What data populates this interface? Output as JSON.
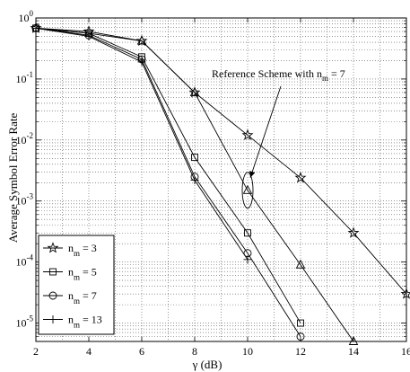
{
  "chart_data": {
    "type": "line",
    "xlabel": "γ (dB)",
    "ylabel": "Average Symbol Error Rate",
    "x_ticks": [
      "2",
      "4",
      "6",
      "8",
      "10",
      "12",
      "14",
      "16"
    ],
    "y_ticks": [
      {
        "base": "10",
        "exp": "0"
      },
      {
        "base": "10",
        "exp": "-1"
      },
      {
        "base": "10",
        "exp": "-2"
      },
      {
        "base": "10",
        "exp": "-3"
      },
      {
        "base": "10",
        "exp": "-4"
      },
      {
        "base": "10",
        "exp": "-5"
      }
    ],
    "xlim": [
      2,
      16
    ],
    "ylim": [
      5e-06,
      1
    ],
    "y_scale": "log",
    "grid": true,
    "legend_position": "bottom-left",
    "annotation": {
      "text": "Reference Scheme with n",
      "subscript": "m",
      "suffix": " = 7",
      "target_x": 10,
      "target_y": 0.0015
    },
    "series": [
      {
        "name": "n_m = 3",
        "legend": {
          "main": "n",
          "sub": "m",
          "suffix": " = 3"
        },
        "marker": "star",
        "x": [
          2,
          4,
          6,
          8,
          10,
          12,
          14,
          16
        ],
        "y": [
          0.68,
          0.6,
          0.42,
          0.06,
          0.012,
          0.0024,
          0.0003,
          3e-05
        ],
        "marker_indices": [
          0,
          1,
          2,
          3,
          4,
          5,
          6,
          7
        ]
      },
      {
        "name": "n_m = 5",
        "legend": {
          "main": "n",
          "sub": "m",
          "suffix": " = 5"
        },
        "marker": "square",
        "x": [
          2,
          4,
          6,
          8,
          10,
          12
        ],
        "y": [
          0.68,
          0.56,
          0.23,
          0.0052,
          0.0003,
          1e-05
        ],
        "marker_indices": [
          0,
          1,
          2,
          3,
          4,
          5
        ]
      },
      {
        "name": "n_m = 7",
        "legend": {
          "main": "n",
          "sub": "m",
          "suffix": " = 7"
        },
        "marker": "circle",
        "x": [
          2,
          4,
          6,
          8,
          10,
          12
        ],
        "y": [
          0.68,
          0.52,
          0.21,
          0.0025,
          0.00014,
          6e-06
        ],
        "marker_indices": [
          0,
          1,
          2,
          3,
          4,
          5
        ]
      },
      {
        "name": "n_m = 13",
        "legend": {
          "main": "n",
          "sub": "m",
          "suffix": " = 13"
        },
        "marker": "plus",
        "x": [
          2,
          4,
          6,
          8,
          10
        ],
        "y": [
          0.68,
          0.5,
          0.19,
          0.0022,
          0.00011
        ],
        "marker_indices": [
          0,
          1,
          2,
          3,
          4
        ]
      },
      {
        "name": "Reference Scheme",
        "marker": "triangle",
        "x": [
          2,
          4,
          6,
          8,
          10,
          12,
          14
        ],
        "y": [
          0.68,
          0.56,
          0.42,
          0.06,
          0.0015,
          9e-05,
          5e-06
        ],
        "marker_indices": [
          2,
          3,
          4,
          5,
          6
        ]
      }
    ]
  }
}
